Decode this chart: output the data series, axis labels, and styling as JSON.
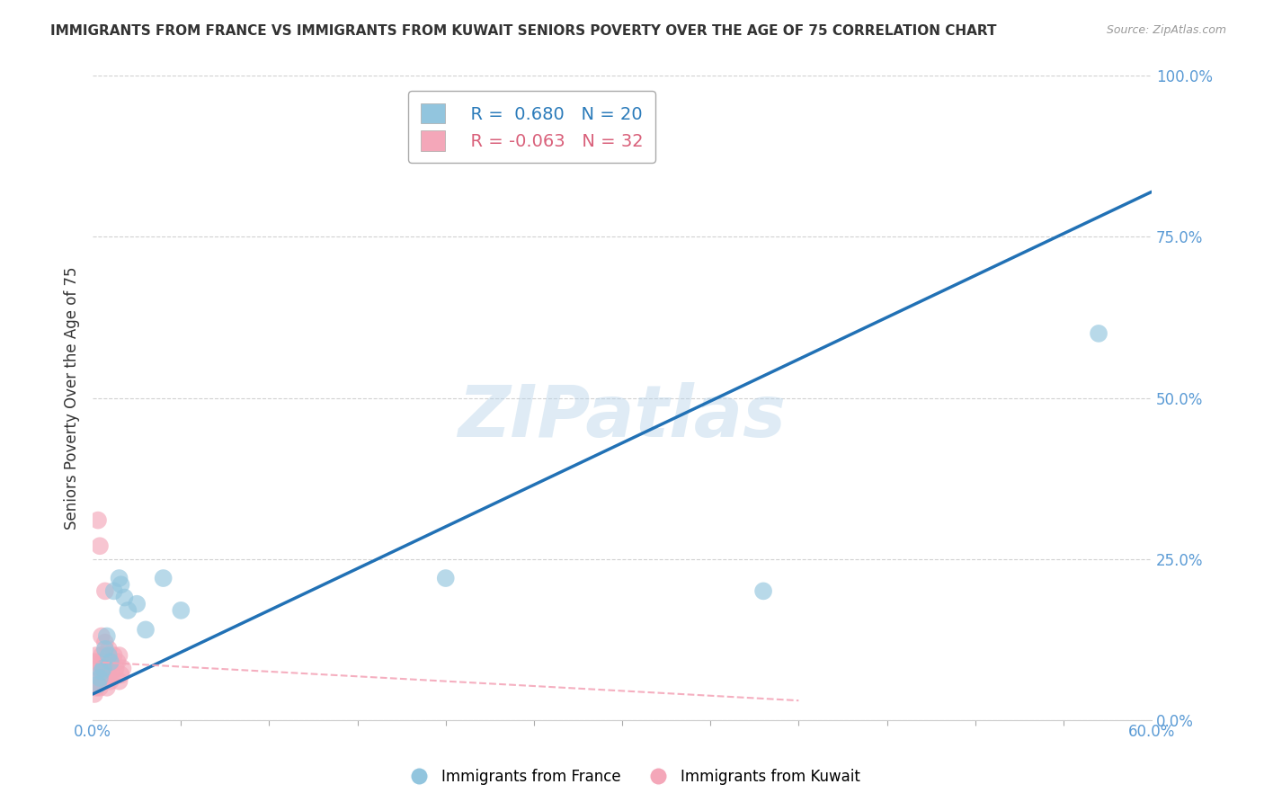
{
  "title": "IMMIGRANTS FROM FRANCE VS IMMIGRANTS FROM KUWAIT SENIORS POVERTY OVER THE AGE OF 75 CORRELATION CHART",
  "source": "Source: ZipAtlas.com",
  "ylabel": "Seniors Poverty Over the Age of 75",
  "xlim": [
    0.0,
    0.6
  ],
  "ylim": [
    0.0,
    1.0
  ],
  "xtick_positions": [
    0.0,
    0.6
  ],
  "xticklabels": [
    "0.0%",
    "60.0%"
  ],
  "ytick_positions": [
    0.0,
    0.25,
    0.5,
    0.75,
    1.0
  ],
  "yticklabels": [
    "0.0%",
    "25.0%",
    "50.0%",
    "75.0%",
    "100.0%"
  ],
  "france_R": 0.68,
  "france_N": 20,
  "kuwait_R": -0.063,
  "kuwait_N": 32,
  "france_color": "#92c5de",
  "kuwait_color": "#f4a7b9",
  "france_line_color": "#2171b5",
  "kuwait_line_color": "#f4a7b9",
  "watermark": "ZIPatlas",
  "france_x": [
    0.003,
    0.004,
    0.005,
    0.006,
    0.007,
    0.008,
    0.009,
    0.01,
    0.012,
    0.015,
    0.016,
    0.018,
    0.02,
    0.025,
    0.03,
    0.04,
    0.05,
    0.2,
    0.38,
    0.57
  ],
  "france_y": [
    0.055,
    0.065,
    0.075,
    0.08,
    0.11,
    0.13,
    0.1,
    0.09,
    0.2,
    0.22,
    0.21,
    0.19,
    0.17,
    0.18,
    0.14,
    0.22,
    0.17,
    0.22,
    0.2,
    0.6
  ],
  "kuwait_x": [
    0.001,
    0.001,
    0.002,
    0.002,
    0.003,
    0.003,
    0.003,
    0.004,
    0.004,
    0.004,
    0.005,
    0.005,
    0.005,
    0.006,
    0.006,
    0.007,
    0.007,
    0.007,
    0.008,
    0.008,
    0.009,
    0.009,
    0.01,
    0.01,
    0.011,
    0.012,
    0.013,
    0.014,
    0.015,
    0.015,
    0.016,
    0.017
  ],
  "kuwait_y": [
    0.04,
    0.09,
    0.05,
    0.1,
    0.06,
    0.09,
    0.31,
    0.05,
    0.08,
    0.27,
    0.07,
    0.1,
    0.13,
    0.06,
    0.09,
    0.07,
    0.12,
    0.2,
    0.05,
    0.08,
    0.07,
    0.11,
    0.06,
    0.09,
    0.07,
    0.1,
    0.08,
    0.09,
    0.06,
    0.1,
    0.07,
    0.08
  ],
  "france_trend_x": [
    0.0,
    0.6
  ],
  "france_trend_y": [
    0.04,
    0.82
  ],
  "kuwait_trend_x": [
    0.0,
    0.4
  ],
  "kuwait_trend_y": [
    0.09,
    0.03
  ],
  "grid_color": "#cccccc",
  "background_color": "#ffffff",
  "ytick_color": "#5b9bd5",
  "xtick_color": "#5b9bd5"
}
